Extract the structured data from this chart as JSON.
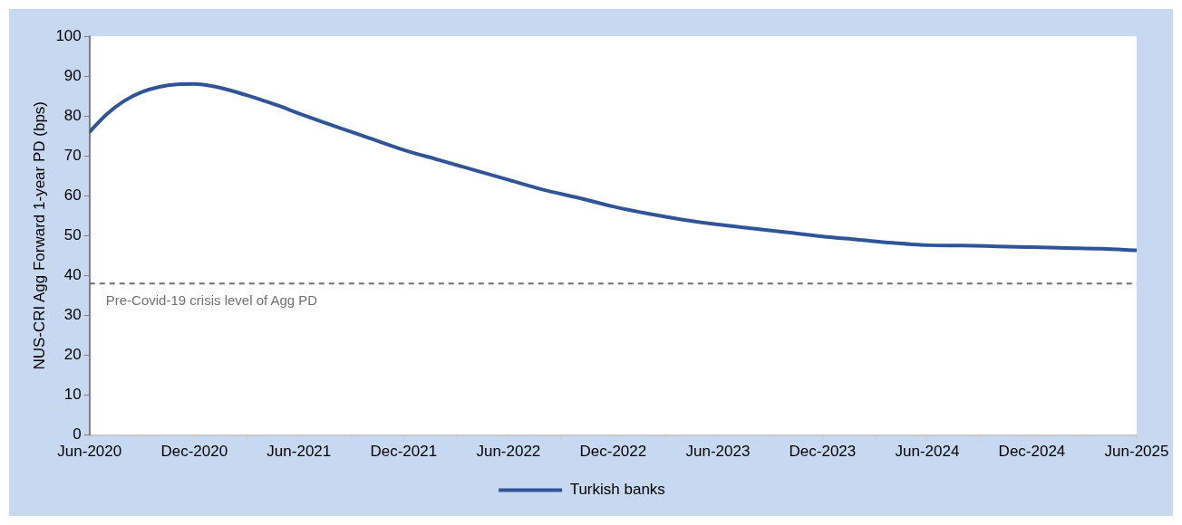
{
  "chart_data": {
    "type": "line",
    "ylabel": "NUS-CRI Agg Forward 1-year PD (bps)",
    "x": [
      "2020-06",
      "2020-07",
      "2020-08",
      "2020-09",
      "2020-10",
      "2020-11",
      "2020-12",
      "2021-01",
      "2021-02",
      "2021-03",
      "2021-04",
      "2021-05",
      "2021-06",
      "2021-08",
      "2021-10",
      "2021-12",
      "2022-02",
      "2022-04",
      "2022-06",
      "2022-08",
      "2022-10",
      "2022-12",
      "2023-02",
      "2023-04",
      "2023-06",
      "2023-08",
      "2023-10",
      "2023-12",
      "2024-02",
      "2024-04",
      "2024-06",
      "2024-08",
      "2024-10",
      "2024-12",
      "2025-02",
      "2025-04",
      "2025-06"
    ],
    "series": [
      {
        "name": "Turkish banks",
        "color": "#2f5597",
        "values": [
          76,
          80.5,
          83.8,
          86,
          87.3,
          87.9,
          88,
          87.5,
          86.5,
          85.2,
          83.8,
          82.3,
          80.6,
          77.5,
          74.5,
          71.5,
          69,
          66.5,
          64,
          61.5,
          59.5,
          57.3,
          55.5,
          54,
          52.8,
          51.8,
          50.8,
          49.8,
          49,
          48.2,
          47.6,
          47.5,
          47.3,
          47.1,
          46.9,
          46.7,
          46.3
        ]
      }
    ],
    "xlim": [
      "2020-06",
      "2025-06"
    ],
    "xticks": [
      {
        "value": "2020-06",
        "label": "Jun-2020"
      },
      {
        "value": "2020-09",
        "label": null
      },
      {
        "value": "2020-12",
        "label": "Dec-2020"
      },
      {
        "value": "2021-03",
        "label": null
      },
      {
        "value": "2021-06",
        "label": "Jun-2021"
      },
      {
        "value": "2021-09",
        "label": null
      },
      {
        "value": "2021-12",
        "label": "Dec-2021"
      },
      {
        "value": "2022-03",
        "label": null
      },
      {
        "value": "2022-06",
        "label": "Jun-2022"
      },
      {
        "value": "2022-09",
        "label": null
      },
      {
        "value": "2022-12",
        "label": "Dec-2022"
      },
      {
        "value": "2023-03",
        "label": null
      },
      {
        "value": "2023-06",
        "label": "Jun-2023"
      },
      {
        "value": "2023-09",
        "label": null
      },
      {
        "value": "2023-12",
        "label": "Dec-2023"
      },
      {
        "value": "2024-03",
        "label": null
      },
      {
        "value": "2024-06",
        "label": "Jun-2024"
      },
      {
        "value": "2024-09",
        "label": null
      },
      {
        "value": "2024-12",
        "label": "Dec-2024"
      },
      {
        "value": "2025-03",
        "label": null
      },
      {
        "value": "2025-06",
        "label": "Jun-2025"
      }
    ],
    "ylim": [
      0,
      100
    ],
    "yticks": [
      0,
      10,
      20,
      30,
      40,
      50,
      60,
      70,
      80,
      90,
      100
    ],
    "ref_lines": [
      {
        "axis": "y",
        "value": 38,
        "label": "Pre-Covid-19 crisis level of Agg PD",
        "color": "#707070",
        "line_style": "dashed"
      }
    ],
    "legend": "bottom",
    "grid": false,
    "marker": "none",
    "line_style": "solid"
  }
}
